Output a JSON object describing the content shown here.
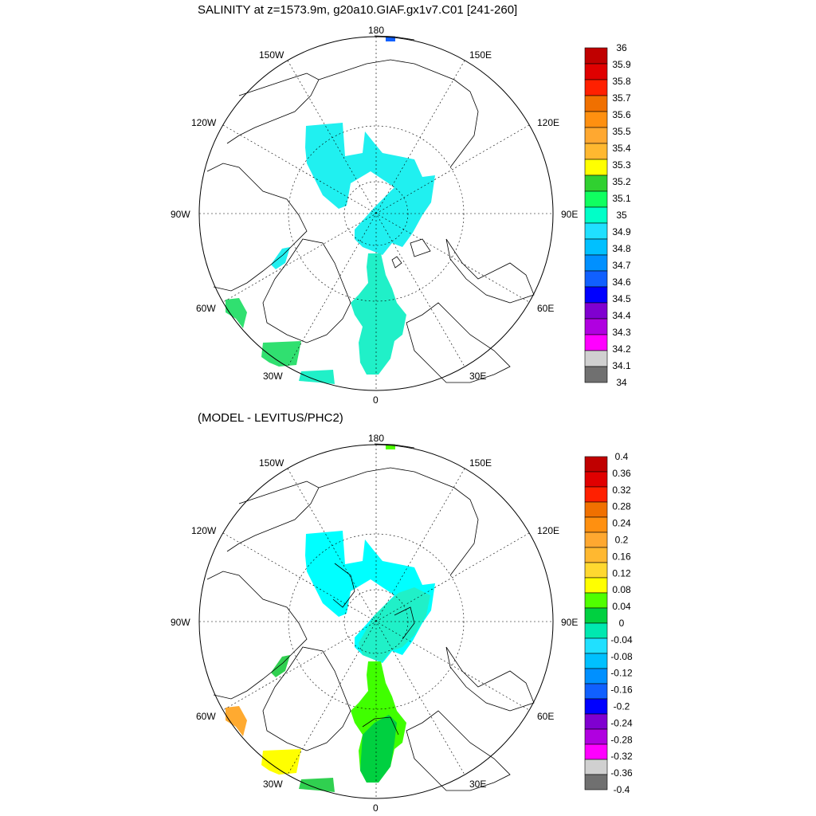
{
  "panels": [
    {
      "title": "SALINITY at z=1573.9m, g20a10.GIAF.gx1v7.C01 [241-260]",
      "colorbar": {
        "labels": [
          "36",
          "35.9",
          "35.8",
          "35.7",
          "35.6",
          "35.5",
          "35.4",
          "35.3",
          "35.2",
          "35.1",
          "35",
          "34.9",
          "34.8",
          "34.7",
          "34.6",
          "34.5",
          "34.4",
          "34.3",
          "34.2",
          "34.1",
          "34"
        ],
        "colors": [
          "#c00000",
          "#e00000",
          "#ff2000",
          "#f07000",
          "#ff9010",
          "#ffa830",
          "#ffb830",
          "#ffff00",
          "#30d030",
          "#10ff60",
          "#00ffc8",
          "#20e0ff",
          "#00c0ff",
          "#0090ff",
          "#1060ff",
          "#0000ff",
          "#8000d0",
          "#b000e0",
          "#ff00ff",
          "#d0d0d0",
          "#707070"
        ]
      }
    },
    {
      "title": "(MODEL - LEVITUS/PHC2)",
      "colorbar": {
        "labels": [
          "0.4",
          "0.36",
          "0.32",
          "0.28",
          "0.24",
          "0.2",
          "0.16",
          "0.12",
          "0.08",
          "0.04",
          "0",
          "-0.04",
          "-0.08",
          "-0.12",
          "-0.16",
          "-0.2",
          "-0.24",
          "-0.28",
          "-0.32",
          "-0.36",
          "-0.4"
        ],
        "colors": [
          "#c00000",
          "#e00000",
          "#ff2000",
          "#f07000",
          "#ff9010",
          "#ffa830",
          "#ffb830",
          "#ffd830",
          "#ffff00",
          "#50ff00",
          "#00d040",
          "#00e8b0",
          "#20e0ff",
          "#00c0ff",
          "#0090ff",
          "#1060ff",
          "#0000ff",
          "#8000d0",
          "#b000e0",
          "#ff00ff",
          "#d0d0d0",
          "#707070"
        ]
      }
    }
  ],
  "map": {
    "lon_labels": [
      "180",
      "150E",
      "120E",
      "90E",
      "60E",
      "30E",
      "0",
      "30W",
      "60W",
      "90W",
      "120W",
      "150W"
    ]
  },
  "colors": {
    "salinity_field": "#20f0f0",
    "salinity_low_atlantic": "#30d070",
    "diff_arctic": "#00ffff",
    "diff_atlantic": "#40ff00",
    "diff_orange": "#ffaa30",
    "diff_yellow": "#ffff00"
  }
}
